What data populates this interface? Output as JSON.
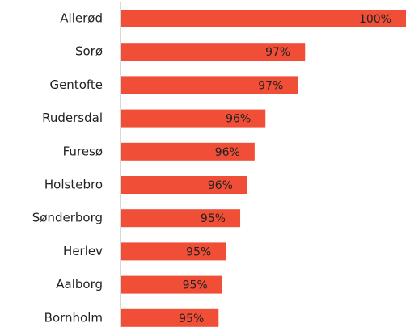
{
  "chart_data": {
    "type": "barh",
    "categories": [
      "Allerød",
      "Sorø",
      "Gentofte",
      "Rudersdal",
      "Furesø",
      "Holstebro",
      "Sønderborg",
      "Herlev",
      "Aalborg",
      "Bornholm"
    ],
    "values": [
      100,
      97.2,
      97.0,
      96.1,
      95.8,
      95.6,
      95.4,
      95.0,
      94.9,
      94.8
    ],
    "value_labels": [
      "100%",
      "97%",
      "97%",
      "96%",
      "96%",
      "96%",
      "95%",
      "95%",
      "95%",
      "95%"
    ],
    "color": "#f04e37",
    "xlim": [
      92.1,
      100
    ]
  }
}
